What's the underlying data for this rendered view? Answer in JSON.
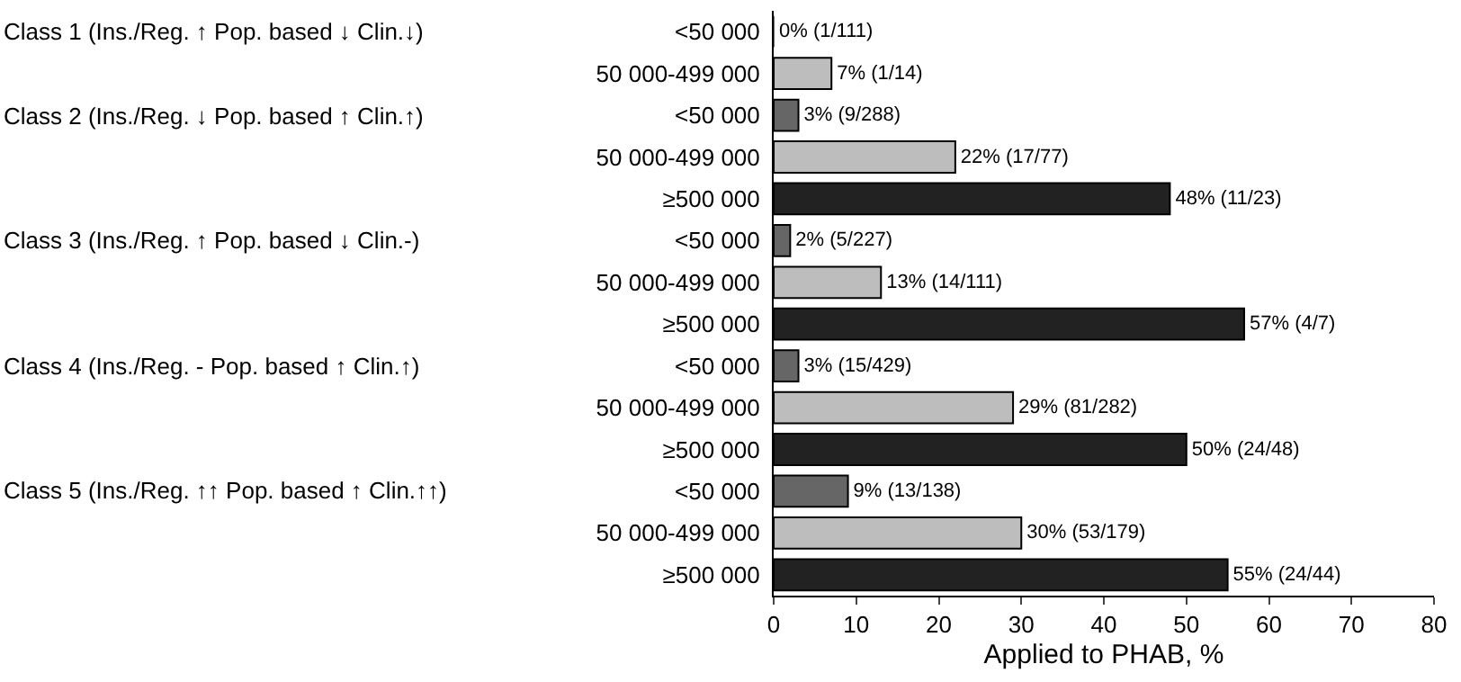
{
  "chart_data": {
    "type": "bar",
    "orientation": "horizontal",
    "xlabel": "Applied to PHAB, %",
    "categories": [
      "<50 000",
      "50 000-499 000",
      "<50 000",
      "50 000-499 000",
      "≥500 000",
      "<50 000",
      "50 000-499 000",
      "≥500 000",
      "<50 000",
      "50 000-499 000",
      "≥500 000",
      "<50 000",
      "50 000-499 000",
      "≥500 000"
    ],
    "values": [
      0,
      7,
      3,
      22,
      48,
      2,
      13,
      57,
      3,
      29,
      50,
      9,
      30,
      55
    ],
    "colors": [
      "#666666",
      "#bdbdbd",
      "#666666",
      "#bdbdbd",
      "#222222",
      "#666666",
      "#bdbdbd",
      "#222222",
      "#666666",
      "#bdbdbd",
      "#222222",
      "#666666",
      "#bdbdbd",
      "#222222"
    ],
    "value_labels": [
      "0% (1/111)",
      "7% (1/14)",
      "3% (9/288)",
      "22% (17/77)",
      "48% (11/23)",
      "2% (5/227)",
      "13% (14/111)",
      "57% (4/7)",
      "3% (15/429)",
      "29% (81/282)",
      "50% (24/48)",
      "9% (13/138)",
      "30% (53/179)",
      "55% (24/44)"
    ],
    "annotations": [
      "Class 1 (Ins./Reg. ↑ Pop. based ↓ Clin.↓)",
      "Class 2 (Ins./Reg. ↓ Pop. based ↑ Clin.↑)",
      "Class 3 (Ins./Reg. ↑ Pop. based ↓ Clin.-)",
      "Class 4 (Ins./Reg. - Pop. based ↑ Clin.↑)",
      "Class 5 (Ins./Reg. ↑↑ Pop. based ↑ Clin.↑↑)"
    ],
    "xlim": [
      0,
      80
    ],
    "xticks": [
      0,
      10,
      20,
      30,
      40,
      50,
      60,
      70,
      80
    ],
    "grid": false
  }
}
